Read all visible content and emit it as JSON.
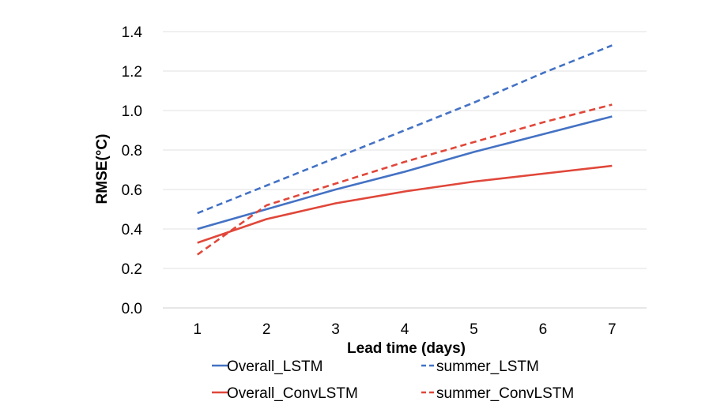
{
  "chart_data": {
    "type": "line",
    "title": "",
    "xlabel": "Lead time (days)",
    "ylabel": "RMSE(°C)",
    "x": [
      1,
      2,
      3,
      4,
      5,
      6,
      7
    ],
    "xlim": [
      0.5,
      7.5
    ],
    "ylim": [
      0,
      1.4
    ],
    "yticks": [
      "0.0",
      "0.2",
      "0.4",
      "0.6",
      "0.8",
      "1.0",
      "1.2",
      "1.4"
    ],
    "xticks": [
      "1",
      "2",
      "3",
      "4",
      "5",
      "6",
      "7"
    ],
    "grid": "horizontal",
    "legend_position": "bottom",
    "series": [
      {
        "name": "Overall_LSTM",
        "color": "#4472C4",
        "dash": "solid",
        "values": [
          0.4,
          0.5,
          0.6,
          0.69,
          0.79,
          0.88,
          0.97
        ]
      },
      {
        "name": "summer_LSTM",
        "color": "#4472C4",
        "dash": "dashed",
        "values": [
          0.48,
          0.62,
          0.76,
          0.9,
          1.04,
          1.19,
          1.33
        ]
      },
      {
        "name": "Overall_ConvLSTM",
        "color": "#E0473A",
        "dash": "solid",
        "values": [
          0.33,
          0.45,
          0.53,
          0.59,
          0.64,
          0.68,
          0.72
        ]
      },
      {
        "name": "summer_ConvLSTM",
        "color": "#E0473A",
        "dash": "dashed",
        "values": [
          0.27,
          0.52,
          0.63,
          0.74,
          0.84,
          0.94,
          1.03
        ]
      }
    ]
  }
}
